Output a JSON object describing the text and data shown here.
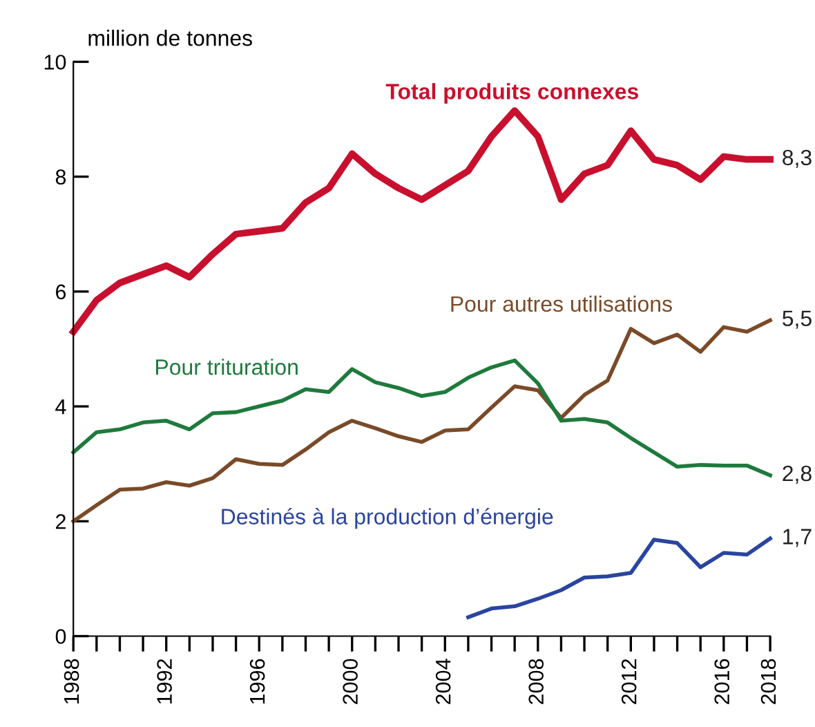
{
  "chart_data": {
    "type": "line",
    "ylabel": "million de tonnes",
    "x": [
      1988,
      1989,
      1990,
      1991,
      1992,
      1993,
      1994,
      1995,
      1996,
      1997,
      1998,
      1999,
      2000,
      2001,
      2002,
      2003,
      2004,
      2005,
      2006,
      2007,
      2008,
      2009,
      2010,
      2011,
      2012,
      2013,
      2014,
      2015,
      2016,
      2017,
      2018
    ],
    "series": [
      {
        "name": "Total produits connexes",
        "color": "#c8102e",
        "values": [
          5.3,
          5.85,
          6.15,
          6.3,
          6.45,
          6.25,
          6.65,
          7.0,
          7.05,
          7.1,
          7.55,
          7.8,
          8.4,
          8.05,
          7.8,
          7.6,
          7.85,
          8.1,
          8.7,
          9.15,
          8.7,
          7.6,
          8.05,
          8.2,
          8.8,
          8.3,
          8.2,
          7.95,
          8.35,
          8.3,
          8.3
        ],
        "value_labels": [
          null,
          null,
          null,
          null,
          null,
          null,
          null,
          null,
          null,
          null,
          null,
          null,
          null,
          null,
          null,
          null,
          null,
          null,
          null,
          null,
          null,
          null,
          null,
          null,
          null,
          null,
          null,
          null,
          null,
          null,
          "8,3"
        ]
      },
      {
        "name": "Pour autres utilisations",
        "color": "#7a4a28",
        "values": [
          2.0,
          2.28,
          2.55,
          2.57,
          2.68,
          2.62,
          2.75,
          3.08,
          3.0,
          2.98,
          3.25,
          3.55,
          3.75,
          3.62,
          3.48,
          3.38,
          3.58,
          3.6,
          3.98,
          4.35,
          4.28,
          3.8,
          4.2,
          4.45,
          5.35,
          5.1,
          5.25,
          4.95,
          5.38,
          5.3,
          5.5
        ],
        "value_labels": [
          null,
          null,
          null,
          null,
          null,
          null,
          null,
          null,
          null,
          null,
          null,
          null,
          null,
          null,
          null,
          null,
          null,
          null,
          null,
          null,
          null,
          null,
          null,
          null,
          null,
          null,
          null,
          null,
          null,
          null,
          "5,5"
        ]
      },
      {
        "name": "Pour trituration",
        "color": "#1e7a3c",
        "values": [
          3.2,
          3.55,
          3.6,
          3.72,
          3.75,
          3.6,
          3.88,
          3.9,
          4.0,
          4.1,
          4.3,
          4.25,
          4.65,
          4.42,
          4.32,
          4.18,
          4.25,
          4.5,
          4.68,
          4.8,
          4.4,
          3.75,
          3.78,
          3.72,
          3.45,
          3.2,
          2.95,
          2.98,
          2.97,
          2.97,
          2.8
        ],
        "value_labels": [
          null,
          null,
          null,
          null,
          null,
          null,
          null,
          null,
          null,
          null,
          null,
          null,
          null,
          null,
          null,
          null,
          null,
          null,
          null,
          null,
          null,
          null,
          null,
          null,
          null,
          null,
          null,
          null,
          null,
          null,
          "2,8"
        ]
      },
      {
        "name": "Destinés à la production d’énergie",
        "color": "#2a44a0",
        "values": [
          null,
          null,
          null,
          null,
          null,
          null,
          null,
          null,
          null,
          null,
          null,
          null,
          null,
          null,
          null,
          null,
          null,
          0.33,
          0.48,
          0.52,
          0.65,
          0.8,
          1.02,
          1.04,
          1.1,
          1.68,
          1.62,
          1.2,
          1.45,
          1.42,
          1.7
        ],
        "value_labels": [
          null,
          null,
          null,
          null,
          null,
          null,
          null,
          null,
          null,
          null,
          null,
          null,
          null,
          null,
          null,
          null,
          null,
          null,
          null,
          null,
          null,
          null,
          null,
          null,
          null,
          null,
          null,
          null,
          null,
          null,
          "1,7"
        ]
      }
    ],
    "xlim": [
      1988,
      2018
    ],
    "xticks": [
      1988,
      {
        "value": 1989,
        "label": null
      },
      {
        "value": 1990,
        "label": null
      },
      {
        "value": 1991,
        "label": null
      },
      1992,
      {
        "value": 1993,
        "label": null
      },
      {
        "value": 1994,
        "label": null
      },
      {
        "value": 1995,
        "label": null
      },
      1996,
      {
        "value": 1997,
        "label": null
      },
      {
        "value": 1998,
        "label": null
      },
      {
        "value": 1999,
        "label": null
      },
      2000,
      {
        "value": 2001,
        "label": null
      },
      {
        "value": 2002,
        "label": null
      },
      {
        "value": 2003,
        "label": null
      },
      2004,
      {
        "value": 2005,
        "label": null
      },
      {
        "value": 2006,
        "label": null
      },
      {
        "value": 2007,
        "label": null
      },
      2008,
      {
        "value": 2009,
        "label": null
      },
      {
        "value": 2010,
        "label": null
      },
      {
        "value": 2011,
        "label": null
      },
      2012,
      {
        "value": 2013,
        "label": null
      },
      {
        "value": 2014,
        "label": null
      },
      {
        "value": 2015,
        "label": null
      },
      2016,
      {
        "value": 2017,
        "label": null
      },
      2018
    ],
    "ylim": [
      0,
      10
    ],
    "yticks": [
      0,
      2,
      4,
      6,
      8,
      10
    ],
    "grid": false,
    "legend": false,
    "marker": "none",
    "line_style": "solid"
  }
}
